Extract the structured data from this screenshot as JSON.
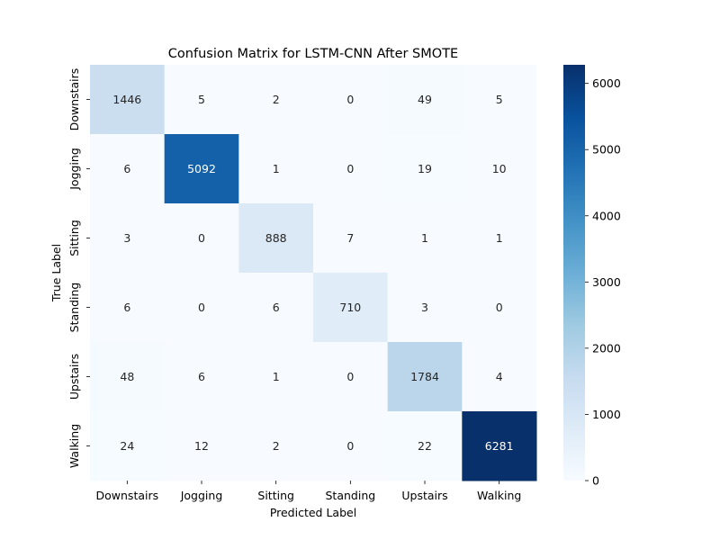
{
  "chart_data": {
    "type": "heatmap",
    "title": "Confusion Matrix for LSTM-CNN After SMOTE",
    "xlabel": "Predicted Label",
    "ylabel": "True Label",
    "x_categories": [
      "Downstairs",
      "Jogging",
      "Sitting",
      "Standing",
      "Upstairs",
      "Walking"
    ],
    "y_categories": [
      "Downstairs",
      "Jogging",
      "Sitting",
      "Standing",
      "Upstairs",
      "Walking"
    ],
    "values": [
      [
        1446,
        5,
        2,
        0,
        49,
        5
      ],
      [
        6,
        5092,
        1,
        0,
        19,
        10
      ],
      [
        3,
        0,
        888,
        7,
        1,
        1
      ],
      [
        6,
        0,
        6,
        710,
        3,
        0
      ],
      [
        48,
        6,
        1,
        0,
        1784,
        4
      ],
      [
        24,
        12,
        2,
        0,
        22,
        6281
      ]
    ],
    "colormap": "Blues",
    "colorbar": {
      "range": [
        0,
        6281
      ],
      "ticks": [
        0,
        1000,
        2000,
        3000,
        4000,
        5000,
        6000
      ]
    },
    "annotations": true,
    "grid": false
  }
}
